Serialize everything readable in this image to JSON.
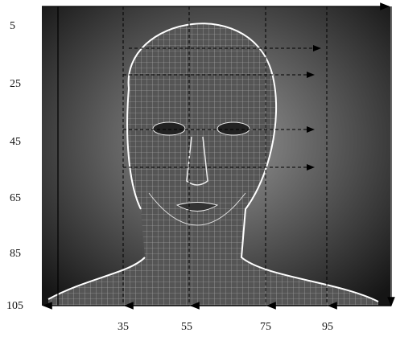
{
  "axes": {
    "y_labels": [
      "5",
      "25",
      "45",
      "65",
      "85",
      "105"
    ],
    "x_labels": [
      "35",
      "55",
      "75",
      "95"
    ]
  }
}
